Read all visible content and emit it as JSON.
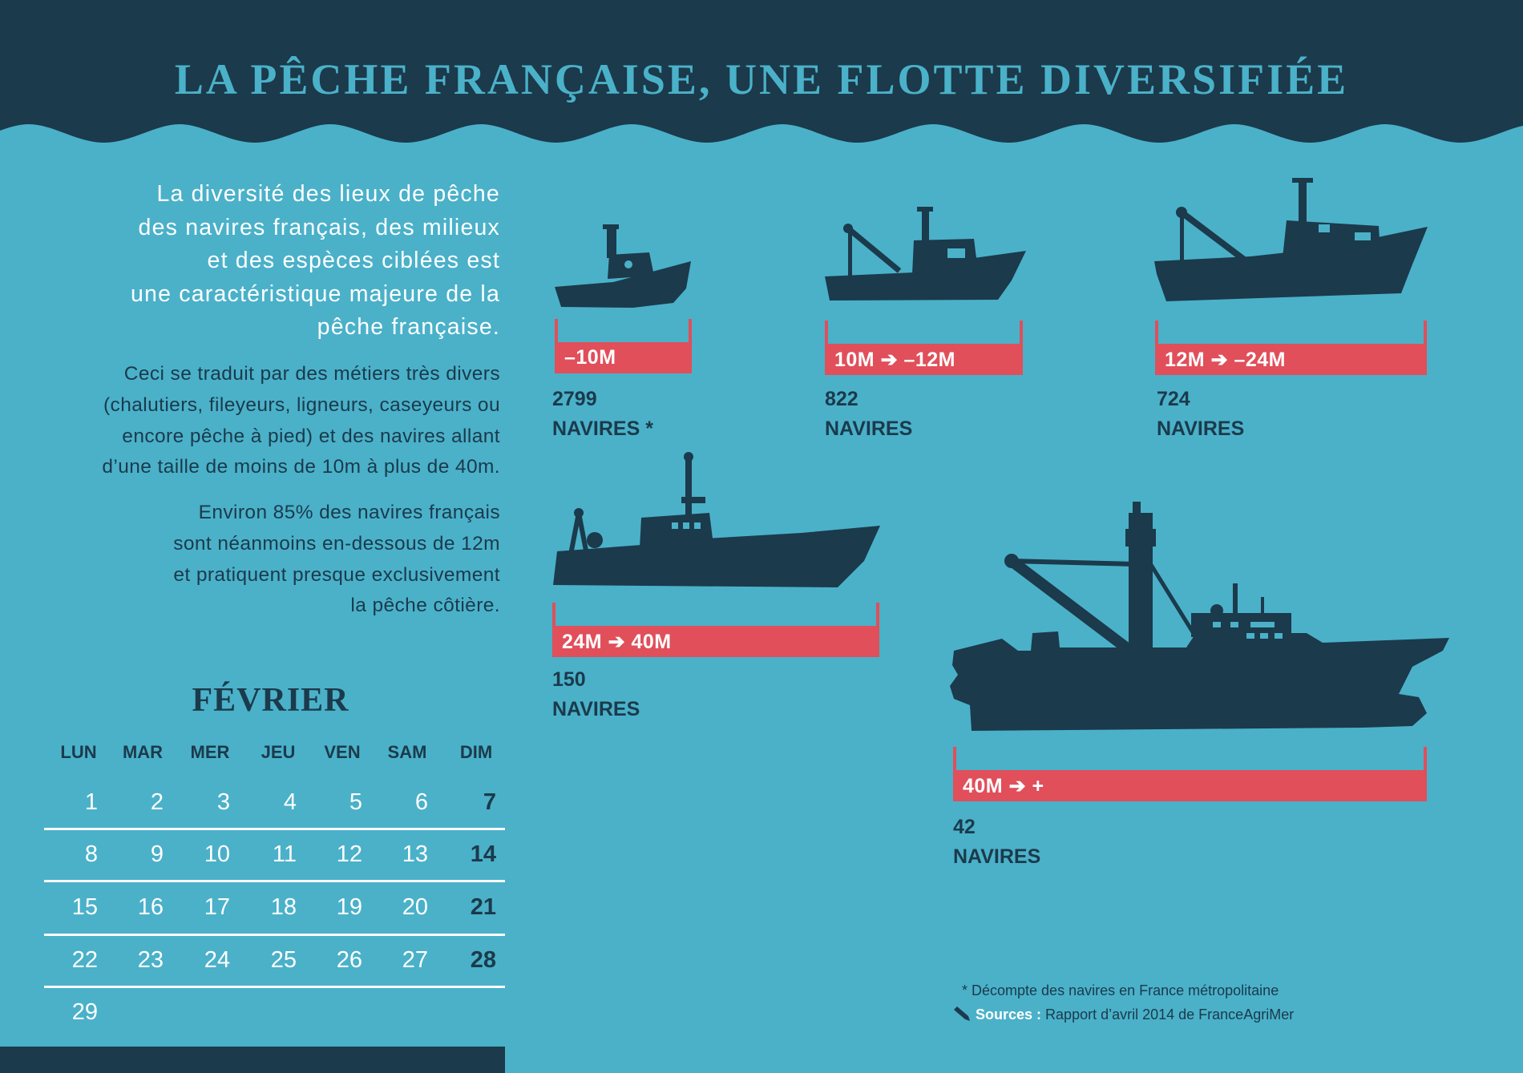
{
  "title": "LA PÊCHE FRANÇAISE, UNE FLOTTE DIVERSIFIÉE",
  "colors": {
    "dark": "#1b3a4b",
    "sea": "#4ab1c9",
    "accent": "#e04f5a",
    "text_light": "#ffffff"
  },
  "intro_lines": [
    "La diversité des lieux de pêche",
    "des navires français, des milieux",
    "et des espèces ciblées est",
    "une caractéristique majeure de la",
    "pêche française."
  ],
  "paragraph2_lines": [
    "Ceci se traduit par des métiers très divers",
    "(chalutiers, fileyeurs, ligneurs, caseyeurs ou",
    "encore pêche à pied) et des navires allant",
    "d’une taille de moins de 10m à plus de 40m."
  ],
  "paragraph3_lines": [
    "Environ 85% des navires français",
    "sont néanmoins en-dessous de 12m",
    "et pratiquent presque exclusivement",
    "la pêche côtière."
  ],
  "calendar": {
    "month": "FÉVRIER",
    "day_headers": [
      "LUN",
      "MAR",
      "MER",
      "JEU",
      "VEN",
      "SAM",
      "DIM"
    ],
    "weeks": [
      [
        "1",
        "2",
        "3",
        "4",
        "5",
        "6",
        "7"
      ],
      [
        "8",
        "9",
        "10",
        "11",
        "12",
        "13",
        "14"
      ],
      [
        "15",
        "16",
        "17",
        "18",
        "19",
        "20",
        "21"
      ],
      [
        "22",
        "23",
        "24",
        "25",
        "26",
        "27",
        "28"
      ],
      [
        "29"
      ]
    ]
  },
  "fleet": [
    {
      "size_label": "–10M",
      "count": "2799",
      "unit": "NAVIRES *",
      "icon": "small-boat-icon"
    },
    {
      "size_label": "10M ➔ –12M",
      "count": "822",
      "unit": "NAVIRES",
      "icon": "trawler-boat-icon"
    },
    {
      "size_label": "12M ➔ –24M",
      "count": "724",
      "unit": "NAVIRES",
      "icon": "trawler-boat-icon"
    },
    {
      "size_label": "24M ➔ 40M",
      "count": "150",
      "unit": "NAVIRES",
      "icon": "large-trawler-icon"
    },
    {
      "size_label": "40M ➔ +",
      "count": "42",
      "unit": "NAVIRES",
      "icon": "factory-ship-icon"
    }
  ],
  "footnotes": {
    "note": "* Décompte des navires en France métropolitaine",
    "sources_label": "Sources :",
    "sources_text": " Rapport d’avril 2014 de FranceAgriMer",
    "sources_icon": "pencil-icon"
  }
}
